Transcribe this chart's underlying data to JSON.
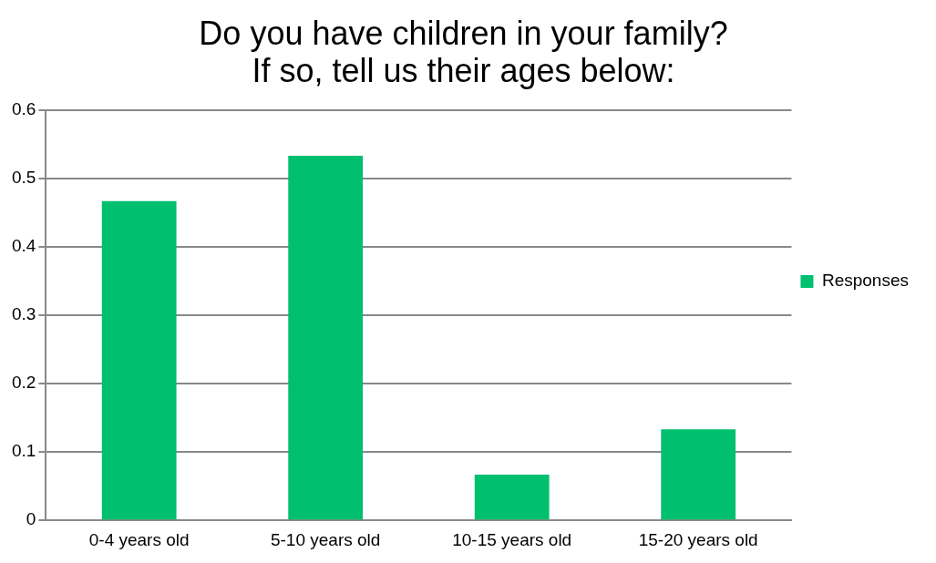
{
  "chart_data": {
    "type": "bar",
    "title": "Do you have children in your family?\nIf so, tell us their ages below:",
    "categories": [
      "0-4 years old",
      "5-10 years old",
      "10-15 years old",
      "15-20 years old"
    ],
    "series": [
      {
        "name": "Responses",
        "color": "#00bf6f",
        "values": [
          0.467,
          0.533,
          0.067,
          0.133
        ]
      }
    ],
    "ylim": [
      0,
      0.6
    ],
    "yticks": [
      0,
      0.1,
      0.2,
      0.3,
      0.4,
      0.5,
      0.6
    ],
    "grid": "y",
    "legend": "right"
  }
}
